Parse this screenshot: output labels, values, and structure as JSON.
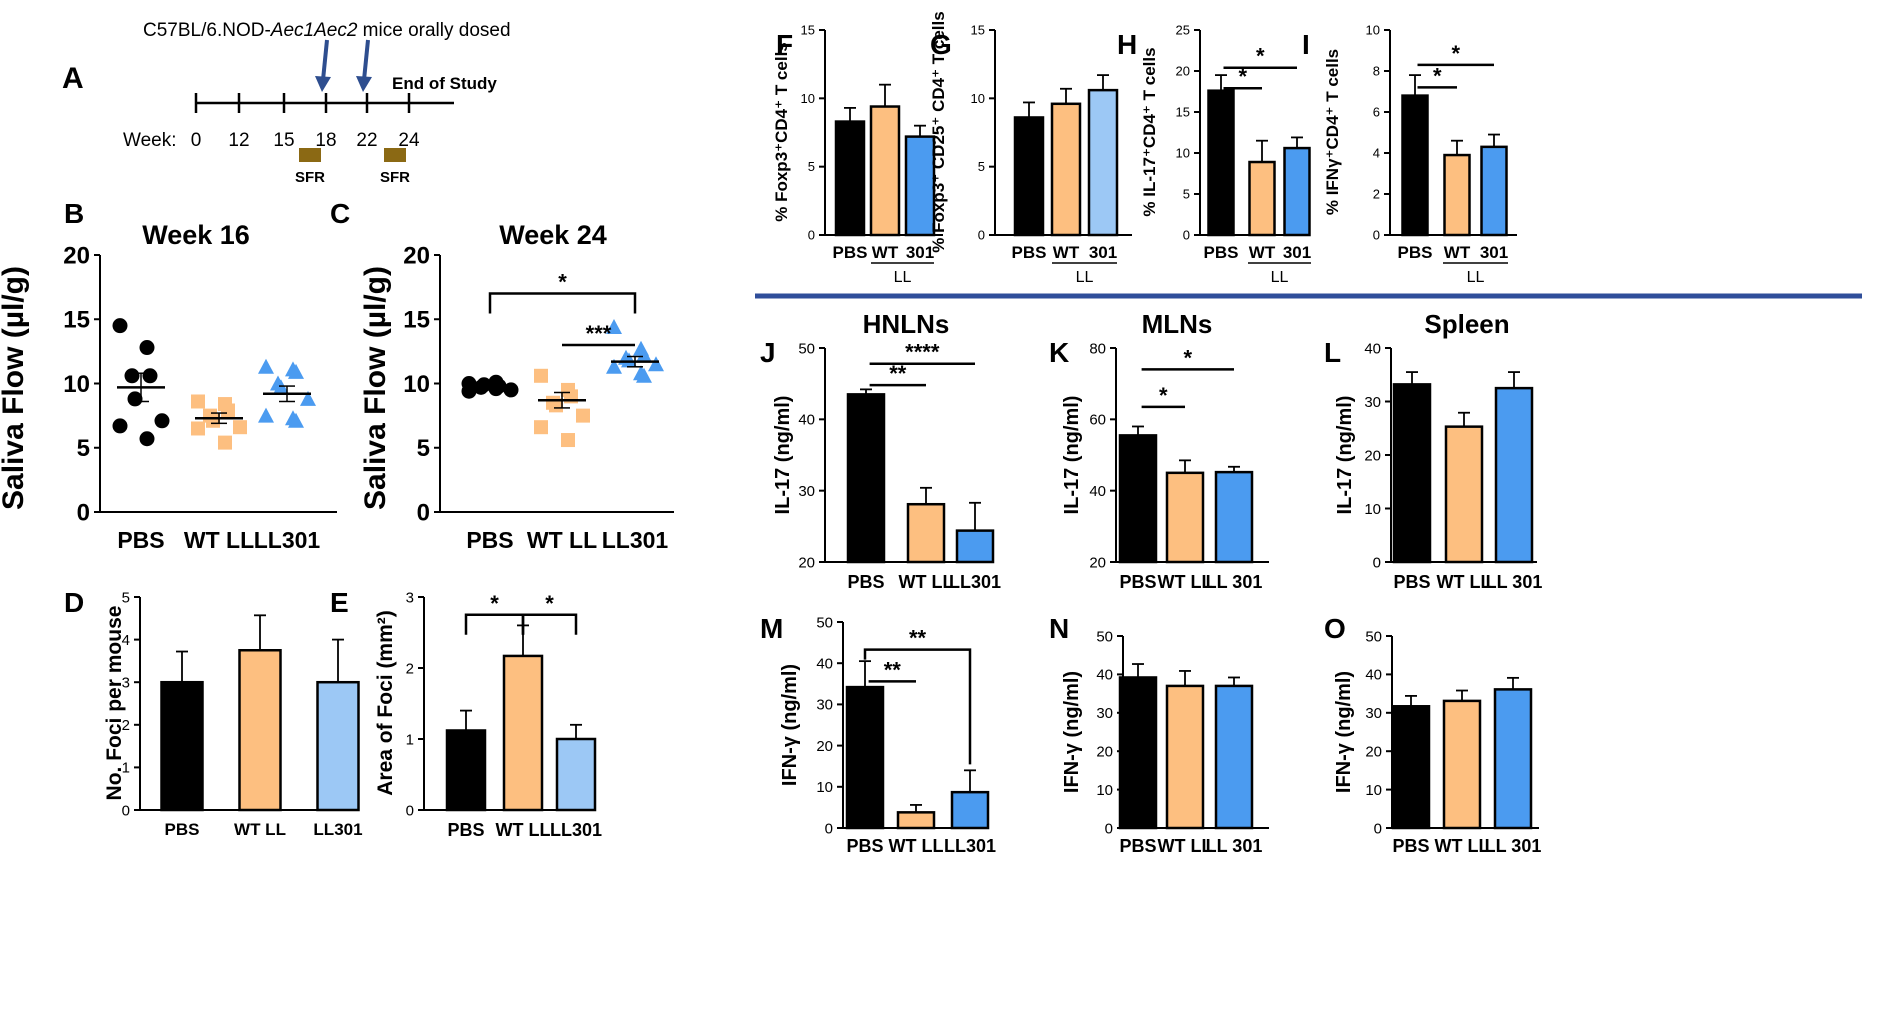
{
  "colors": {
    "PBS": "#000000",
    "WT": "#FDBF80",
    "LL301": "#4B9BF0",
    "LL301_light": "#9CC8F5",
    "timeline_arrow": "#2E4E8F",
    "sfr_box": "#8B6914",
    "divider": "#2F4E9A"
  },
  "timeline": {
    "panel_label": "A",
    "title_prefix": "C57BL/6.NOD-",
    "title_italic": "Aec1Aec2",
    "title_suffix": " mice orally dosed",
    "week_label": "Week:",
    "ticks": [
      "0",
      "12",
      "15",
      "18",
      "22",
      "24"
    ],
    "end_label": "End of Study",
    "sfr_label": "SFR",
    "dosing_weeks": [
      "18",
      "22"
    ],
    "sfr_weeks": [
      "16",
      "23"
    ]
  },
  "chart_data": [
    {
      "id": "B",
      "panel_label": "B",
      "type": "scatter",
      "title": "Week 16",
      "ylabel": "Saliva Flow (µl/g)",
      "ylim": [
        0,
        20
      ],
      "yticks": [
        "0",
        "5",
        "10",
        "15",
        "20"
      ],
      "categories": [
        "PBS",
        "WT LL",
        "LL301"
      ],
      "series": [
        {
          "name": "PBS",
          "marker": "circle",
          "points": [
            14.5,
            12.8,
            10.6,
            10.6,
            8.8,
            7.1,
            6.7,
            5.7
          ],
          "mean": 9.7,
          "sem": 1.1
        },
        {
          "name": "WT LL",
          "marker": "square",
          "points": [
            8.6,
            8.4,
            7.9,
            7.5,
            7.1,
            6.6,
            6.5,
            5.4
          ],
          "mean": 7.3,
          "sem": 0.4
        },
        {
          "name": "LL301",
          "marker": "triangle",
          "points": [
            11.3,
            11.1,
            10.9,
            10.0,
            9.7,
            8.8,
            7.5,
            7.3,
            7.1
          ],
          "mean": 9.2,
          "sem": 0.6
        }
      ]
    },
    {
      "id": "C",
      "panel_label": "C",
      "type": "scatter",
      "title": "Week 24",
      "ylabel": "Saliva Flow (µl/g)",
      "ylim": [
        0,
        20
      ],
      "yticks": [
        "0",
        "5",
        "10",
        "15",
        "20"
      ],
      "categories": [
        "PBS",
        "WT LL",
        "LL301"
      ],
      "series": [
        {
          "name": "PBS",
          "marker": "circle",
          "points": [
            10.0,
            10.1,
            9.8,
            9.7,
            9.9,
            9.5,
            9.4,
            9.6
          ],
          "mean": 9.8,
          "sem": 0.1
        },
        {
          "name": "WT LL",
          "marker": "square",
          "points": [
            10.6,
            9.5,
            9.0,
            8.5,
            8.3,
            7.5,
            6.6,
            5.6
          ],
          "mean": 8.7,
          "sem": 0.6
        },
        {
          "name": "LL301",
          "marker": "triangle",
          "points": [
            14.4,
            12.7,
            12.2,
            12.0,
            11.8,
            11.5,
            11.3,
            10.8,
            10.6
          ],
          "mean": 11.7,
          "sem": 0.4
        }
      ],
      "significance": [
        {
          "from": 0,
          "to": 2,
          "label": "*",
          "y": 17.0,
          "style": "bracket"
        },
        {
          "from": 1,
          "to": 2,
          "label": "***",
          "y": 13.0,
          "style": "line"
        }
      ]
    },
    {
      "id": "D",
      "panel_label": "D",
      "type": "bar",
      "ylabel": "No. Foci per mouse",
      "ylim": [
        0,
        5
      ],
      "yticks": [
        "0",
        "1",
        "2",
        "3",
        "4",
        "5"
      ],
      "categories": [
        "PBS",
        "WT LL",
        "LL301"
      ],
      "values": [
        3.0,
        3.75,
        3.0
      ],
      "errors": [
        0.72,
        0.82,
        1.0
      ],
      "bar_colors": [
        "PBS",
        "WT",
        "LL301_light"
      ]
    },
    {
      "id": "E",
      "panel_label": "E",
      "type": "bar",
      "ylabel": "Area of Foci (mm²)",
      "ylim": [
        0,
        3
      ],
      "yticks": [
        "0",
        "1",
        "2",
        "3"
      ],
      "categories": [
        "PBS",
        "WT LL",
        "LL301"
      ],
      "values": [
        1.12,
        2.17,
        1.0
      ],
      "errors": [
        0.28,
        0.43,
        0.2
      ],
      "bar_colors": [
        "PBS",
        "WT",
        "LL301_light"
      ],
      "significance": [
        {
          "from": 0,
          "to": 1,
          "label": "*",
          "y": 2.75,
          "style": "bracket"
        },
        {
          "from": 1,
          "to": 2,
          "label": "*",
          "y": 2.75,
          "style": "bracket"
        }
      ]
    },
    {
      "id": "F",
      "panel_label": "F",
      "type": "bar",
      "ylabel": "% Foxp3⁺CD4⁺ T cells",
      "ylim": [
        0,
        15
      ],
      "yticks": [
        "0",
        "5",
        "10",
        "15"
      ],
      "categories": [
        "PBS",
        "WT",
        "301"
      ],
      "group_label": "LL",
      "values": [
        8.3,
        9.4,
        7.2
      ],
      "errors": [
        1.0,
        1.6,
        0.8
      ],
      "bar_colors": [
        "PBS",
        "WT",
        "LL301"
      ]
    },
    {
      "id": "G",
      "panel_label": "G",
      "type": "bar",
      "ylabel": "% Foxp3⁺ CD25⁺ CD4⁺ T cells",
      "ylim": [
        0,
        15
      ],
      "yticks": [
        "0",
        "5",
        "10",
        "15"
      ],
      "categories": [
        "PBS",
        "WT",
        "301"
      ],
      "group_label": "LL",
      "values": [
        8.6,
        9.6,
        10.6
      ],
      "errors": [
        1.1,
        1.1,
        1.1
      ],
      "bar_colors": [
        "PBS",
        "WT",
        "LL301_light"
      ]
    },
    {
      "id": "H",
      "panel_label": "H",
      "type": "bar",
      "ylabel": "% IL-17⁺CD4⁺ T cells",
      "ylim": [
        0,
        25
      ],
      "yticks": [
        "0",
        "5",
        "10",
        "15",
        "20",
        "25"
      ],
      "categories": [
        "PBS",
        "WT",
        "301"
      ],
      "group_label": "LL",
      "values": [
        17.6,
        8.9,
        10.6
      ],
      "errors": [
        1.9,
        2.6,
        1.3
      ],
      "bar_colors": [
        "PBS",
        "WT",
        "LL301"
      ],
      "significance": [
        {
          "from": 0,
          "to": 1,
          "label": "*",
          "y": 17.9,
          "style": "line"
        },
        {
          "from": 0,
          "to": 2,
          "label": "*",
          "y": 20.4,
          "style": "line"
        }
      ]
    },
    {
      "id": "I",
      "panel_label": "I",
      "type": "bar",
      "ylabel": "% IFNγ⁺CD4⁺ T cells",
      "ylim": [
        0,
        10
      ],
      "yticks": [
        "0",
        "2",
        "4",
        "6",
        "8",
        "10"
      ],
      "categories": [
        "PBS",
        "WT",
        "301"
      ],
      "group_label": "LL",
      "values": [
        6.8,
        3.9,
        4.3
      ],
      "errors": [
        1.0,
        0.7,
        0.6
      ],
      "bar_colors": [
        "PBS",
        "WT",
        "LL301"
      ],
      "significance": [
        {
          "from": 0,
          "to": 1,
          "label": "*",
          "y": 7.2,
          "style": "line"
        },
        {
          "from": 0,
          "to": 2,
          "label": "*",
          "y": 8.3,
          "style": "line"
        }
      ]
    },
    {
      "id": "J",
      "panel_label": "J",
      "type": "bar",
      "title": "HNLNs",
      "ylabel": "IL-17 (ng/ml)",
      "ylim": [
        20,
        50
      ],
      "yticks": [
        "20",
        "30",
        "40",
        "50"
      ],
      "categories": [
        "PBS",
        "WT LL",
        "LL301"
      ],
      "values": [
        43.5,
        28.1,
        24.4
      ],
      "errors": [
        0.7,
        2.3,
        3.9
      ],
      "bar_colors": [
        "PBS",
        "WT",
        "LL301"
      ],
      "significance": [
        {
          "from": 0,
          "to": 1,
          "label": "**",
          "y": 44.8,
          "style": "line"
        },
        {
          "from": 0,
          "to": 2,
          "label": "****",
          "y": 47.8,
          "style": "line"
        }
      ]
    },
    {
      "id": "K",
      "panel_label": "K",
      "type": "bar",
      "title": "MLNs",
      "ylabel": "IL-17 (ng/ml)",
      "ylim": [
        20,
        80
      ],
      "yticks": [
        "20",
        "40",
        "60",
        "80"
      ],
      "categories": [
        "PBS",
        "WT LL",
        "LL 301"
      ],
      "values": [
        55.5,
        45.0,
        45.2
      ],
      "errors": [
        2.5,
        3.5,
        1.5
      ],
      "bar_colors": [
        "PBS",
        "WT",
        "LL301"
      ],
      "significance": [
        {
          "from": 0,
          "to": 1,
          "label": "*",
          "y": 63.5,
          "style": "line"
        },
        {
          "from": 0,
          "to": 2,
          "label": "*",
          "y": 74.0,
          "style": "line"
        }
      ]
    },
    {
      "id": "L",
      "panel_label": "L",
      "type": "bar",
      "title": "Spleen",
      "ylabel": "IL-17 (ng/ml)",
      "ylim": [
        0,
        40
      ],
      "yticks": [
        "0",
        "10",
        "20",
        "30",
        "40"
      ],
      "categories": [
        "PBS",
        "WT LL",
        "LL 301"
      ],
      "values": [
        33.2,
        25.3,
        32.5
      ],
      "errors": [
        2.3,
        2.6,
        3.0
      ],
      "bar_colors": [
        "PBS",
        "WT",
        "LL301"
      ]
    },
    {
      "id": "M",
      "panel_label": "M",
      "type": "bar",
      "ylabel": "IFN-γ (ng/ml)",
      "ylim": [
        0,
        50
      ],
      "yticks": [
        "0",
        "10",
        "20",
        "30",
        "40",
        "50"
      ],
      "categories": [
        "PBS",
        "WT LL",
        "LL301"
      ],
      "values": [
        34.2,
        3.8,
        8.7
      ],
      "errors": [
        6.3,
        1.8,
        5.3
      ],
      "bar_colors": [
        "PBS",
        "WT",
        "LL301"
      ],
      "significance": [
        {
          "from": 0,
          "to": 1,
          "label": "**",
          "y": 35.6,
          "style": "line"
        },
        {
          "from": 0,
          "to": 2,
          "label": "**",
          "y": 43.3,
          "style": "bracket-down"
        }
      ]
    },
    {
      "id": "N",
      "panel_label": "N",
      "type": "bar",
      "ylabel": "IFN-γ (ng/ml)",
      "ylim": [
        0,
        50
      ],
      "yticks": [
        "0",
        "10",
        "20",
        "30",
        "40",
        "50"
      ],
      "categories": [
        "PBS",
        "WT LL",
        "LL 301"
      ],
      "values": [
        39.2,
        37.0,
        37.0
      ],
      "errors": [
        3.5,
        3.9,
        2.2
      ],
      "bar_colors": [
        "PBS",
        "WT",
        "LL301"
      ]
    },
    {
      "id": "O",
      "panel_label": "O",
      "type": "bar",
      "ylabel": "IFN-γ (ng/ml)",
      "ylim": [
        0,
        50
      ],
      "yticks": [
        "0",
        "10",
        "20",
        "30",
        "40",
        "50"
      ],
      "categories": [
        "PBS",
        "WT LL",
        "LL 301"
      ],
      "values": [
        31.7,
        33.1,
        36.1
      ],
      "errors": [
        2.7,
        2.7,
        3.0
      ],
      "bar_colors": [
        "PBS",
        "WT",
        "LL301"
      ]
    }
  ]
}
